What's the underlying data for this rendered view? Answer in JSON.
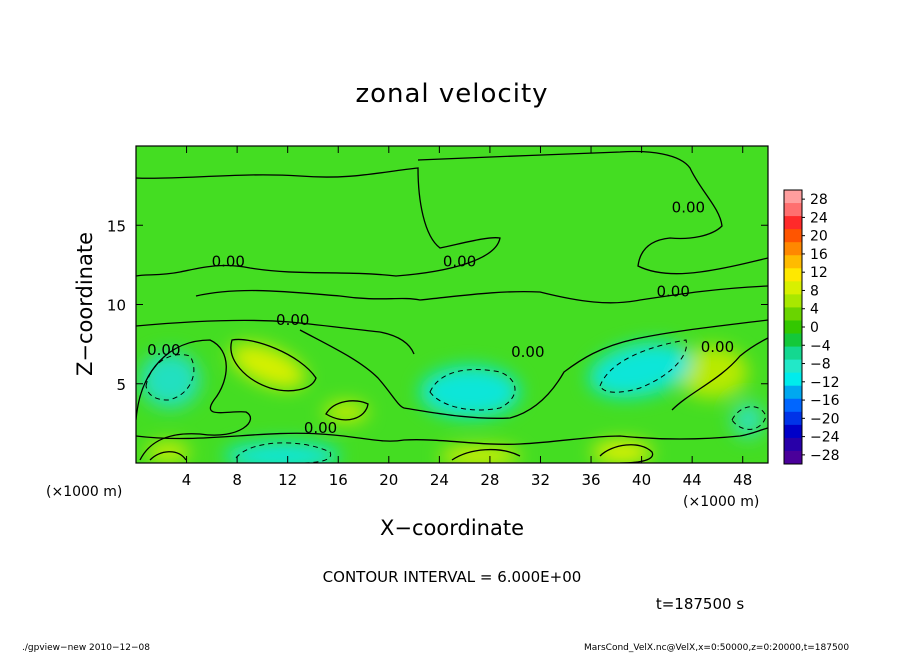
{
  "chart_data": {
    "type": "heatmap",
    "title": "zonal velocity",
    "xlabel": "X−coordinate",
    "ylabel": "Z−coordinate",
    "x_unit": "(×1000 m)",
    "y_unit": "(×1000 m)",
    "xlim": [
      0,
      50
    ],
    "ylim": [
      0,
      20
    ],
    "x_ticks": [
      "4",
      "8",
      "12",
      "16",
      "20",
      "24",
      "28",
      "32",
      "36",
      "40",
      "44",
      "48"
    ],
    "y_ticks": [
      "5",
      "10",
      "15"
    ],
    "contour_interval_text": "CONTOUR INTERVAL = 6.000E+00",
    "time_text": "t=187500 s",
    "contour_labels": [
      {
        "text": "0.00",
        "x": 7.3,
        "y": 12.4
      },
      {
        "text": "0.00",
        "x": 25.6,
        "y": 12.4
      },
      {
        "text": "0.00",
        "x": 43.7,
        "y": 15.8
      },
      {
        "text": "0.00",
        "x": 42.5,
        "y": 10.5
      },
      {
        "text": "0.00",
        "x": 12.4,
        "y": 8.7
      },
      {
        "text": "0.00",
        "x": 2.2,
        "y": 6.8
      },
      {
        "text": "0.00",
        "x": 31.0,
        "y": 6.7
      },
      {
        "text": "0.00",
        "x": 46.0,
        "y": 7.0
      },
      {
        "text": "0.00",
        "x": 14.6,
        "y": 1.9
      }
    ],
    "colorbar": {
      "ticks": [
        "28",
        "24",
        "20",
        "16",
        "12",
        "8",
        "4",
        "0",
        "−4",
        "−8",
        "−12",
        "−16",
        "−20",
        "−24",
        "−28"
      ],
      "range": [
        -30,
        30
      ],
      "colors": [
        "#ff9e9e",
        "#ff6f6f",
        "#ff2a2a",
        "#ff5500",
        "#ff8800",
        "#ffbb00",
        "#ffe800",
        "#d8f000",
        "#a8e800",
        "#6ad400",
        "#33c800",
        "#14c83a",
        "#14d890",
        "#22e8c8",
        "#00ecec",
        "#00a8f0",
        "#0066ff",
        "#0033e8",
        "#0000c8",
        "#2800a8",
        "#4a009a"
      ]
    },
    "field_background": "#44dd22"
  },
  "footer": {
    "left": "./gpview−new  2010−12−08",
    "right": "MarsCond_VelX.nc@VelX,x=0:50000,z=0:20000,t=187500"
  }
}
